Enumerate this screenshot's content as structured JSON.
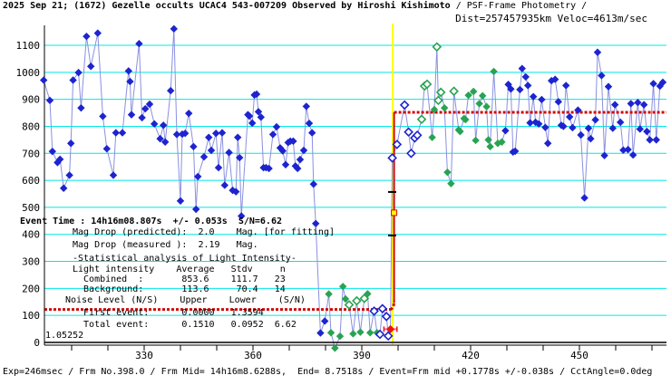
{
  "title": {
    "bold": "2025 Sep 21; (1672) Gezelle occults UCAC4 543-007209 Observed by Hiroshi Kishimoto ",
    "light": "/ PSF-Frame Photometry /",
    "sub": "Dist=257457935km Veloc=4613m/sec"
  },
  "footer": {
    "text": "Exp=246msec / Frm No.398.0 / Frm Mid= 14h16m8.6288s,  End= 8.7518s / Event=Frm mid +0.1778s +/-0.038s / CctAngle=0.0deg"
  },
  "event_info": {
    "lines": [
      "Event Time : 14h16m08.807s  +/- 0.053s  S/N=6.62",
      "Mag Drop (predicted):  2.0    Mag. [for fitting]",
      "Mag Drop (measured ):  2.19   Mag.",
      "-Statistical analysis of Light Intensity-",
      "Light intensity    Average   Stdv     n",
      "  Combined  :       853.6    111.7   23",
      "  Background:       113.6     70.4   14",
      "Noise Level (N/S)    Upper    Lower    (S/N)",
      "  First event:      0.0000   1.3594",
      "  Total event:      0.1510   0.0952  6.62",
      "1.05252"
    ]
  },
  "chart_data": {
    "type": "line",
    "title": "",
    "xlabel": "",
    "ylabel": "",
    "x_axis": {
      "labels": [
        330,
        360,
        390,
        420,
        450
      ],
      "tick_start": 310,
      "tick_end": 470,
      "tick_step": 10,
      "min": 302.5,
      "max": 474
    },
    "y_axis": {
      "labels": [
        0,
        100,
        200,
        300,
        400,
        500,
        600,
        700,
        800,
        900,
        1000,
        1100
      ],
      "step": 100,
      "grid_start": 100,
      "max": 1100
    },
    "grid": true,
    "legend": "none",
    "colors": {
      "grid": "#00e8e8",
      "line": "#8a90e0",
      "blue_point": "#1d24cf",
      "green_point": "#28a352",
      "fit": "#cf0a0a",
      "cursor": "#ffff00",
      "event": "#ee1111",
      "event_bar": "#ff5f9e",
      "axis": "#000000"
    },
    "marker_styles": {
      "b": {
        "fill": "#1d24cf"
      },
      "bo": {
        "fill": "#ffffff",
        "stroke": "#1d24cf"
      },
      "g": {
        "fill": "#28a352"
      },
      "go": {
        "fill": "#ffffff",
        "stroke": "#28a352"
      },
      "r": {
        "fill": "#ee1111"
      }
    },
    "cursor": {
      "frame": 398.5
    },
    "fit": {
      "low_level": 122,
      "high_level": 852,
      "step_frame": 398.9,
      "tick_marks": [
        {
          "frame": 398.25,
          "value": 557
        },
        {
          "frame": 398.25,
          "value": 396
        }
      ],
      "square": {
        "value": 480
      }
    },
    "event_marker": {
      "frame": 397.9,
      "value": 49,
      "errorbar_halfwidth_frames": 1.8
    },
    "points": [
      [
        302.3,
        971,
        "b"
      ],
      [
        304,
        896,
        "b"
      ],
      [
        304.7,
        707,
        "b"
      ],
      [
        306.1,
        666,
        "b"
      ],
      [
        306.8,
        678,
        "b"
      ],
      [
        307.8,
        571,
        "b"
      ],
      [
        309.4,
        619,
        "b"
      ],
      [
        309.8,
        737,
        "b"
      ],
      [
        310.4,
        971,
        "b"
      ],
      [
        311.9,
        999,
        "b"
      ],
      [
        312.6,
        868,
        "b"
      ],
      [
        314.1,
        1133,
        "b"
      ],
      [
        315.3,
        1022,
        "b"
      ],
      [
        317.2,
        1145,
        "b"
      ],
      [
        318.6,
        837,
        "b"
      ],
      [
        319.7,
        717,
        "b"
      ],
      [
        321.5,
        619,
        "b"
      ],
      [
        322.2,
        776,
        "b"
      ],
      [
        324,
        776,
        "b"
      ],
      [
        325.7,
        1005,
        "b"
      ],
      [
        326.1,
        966,
        "b"
      ],
      [
        326.5,
        843,
        "b"
      ],
      [
        328.6,
        1106,
        "b"
      ],
      [
        329.4,
        832,
        "b"
      ],
      [
        330.3,
        865,
        "b"
      ],
      [
        331.5,
        882,
        "b"
      ],
      [
        332.8,
        809,
        "b"
      ],
      [
        334.4,
        754,
        "b"
      ],
      [
        335.3,
        804,
        "b"
      ],
      [
        335.8,
        742,
        "b"
      ],
      [
        337.3,
        932,
        "b"
      ],
      [
        338.2,
        1161,
        "b"
      ],
      [
        339,
        770,
        "b"
      ],
      [
        340,
        524,
        "b"
      ],
      [
        340.5,
        771,
        "b"
      ],
      [
        341.3,
        774,
        "b"
      ],
      [
        342.3,
        848,
        "b"
      ],
      [
        343.6,
        725,
        "b"
      ],
      [
        344.3,
        493,
        "b"
      ],
      [
        344.8,
        614,
        "b"
      ],
      [
        346.5,
        687,
        "b"
      ],
      [
        347.8,
        759,
        "b"
      ],
      [
        348.5,
        711,
        "b"
      ],
      [
        349.8,
        774,
        "b"
      ],
      [
        350.5,
        647,
        "b"
      ],
      [
        351.5,
        776,
        "b"
      ],
      [
        352.2,
        582,
        "b"
      ],
      [
        353.4,
        703,
        "b"
      ],
      [
        354.4,
        563,
        "b"
      ],
      [
        355.3,
        558,
        "b"
      ],
      [
        355.8,
        759,
        "b"
      ],
      [
        356.3,
        684,
        "b"
      ],
      [
        356.8,
        468,
        "b"
      ],
      [
        358.6,
        843,
        "b"
      ],
      [
        359,
        838,
        "b"
      ],
      [
        359.8,
        812,
        "b"
      ],
      [
        360.4,
        916,
        "b"
      ],
      [
        361,
        919,
        "b"
      ],
      [
        361.5,
        854,
        "b"
      ],
      [
        362.2,
        834,
        "b"
      ],
      [
        362.9,
        647,
        "b"
      ],
      [
        363.6,
        647,
        "b"
      ],
      [
        364.4,
        644,
        "b"
      ],
      [
        365.5,
        770,
        "b"
      ],
      [
        366.5,
        798,
        "b"
      ],
      [
        367.5,
        720,
        "b"
      ],
      [
        368.2,
        709,
        "b"
      ],
      [
        369,
        658,
        "b"
      ],
      [
        369.7,
        740,
        "b"
      ],
      [
        370.3,
        745,
        "b"
      ],
      [
        371.1,
        745,
        "b"
      ],
      [
        371.7,
        653,
        "b"
      ],
      [
        372.3,
        644,
        "b"
      ],
      [
        373,
        677,
        "b"
      ],
      [
        374,
        711,
        "b"
      ],
      [
        374.7,
        874,
        "b"
      ],
      [
        375.5,
        811,
        "b"
      ],
      [
        376.3,
        776,
        "b"
      ],
      [
        376.7,
        586,
        "b"
      ],
      [
        377.3,
        440,
        "b"
      ],
      [
        378.6,
        35,
        "b"
      ],
      [
        379.8,
        79,
        "b"
      ],
      [
        380.9,
        179,
        "g"
      ],
      [
        381.5,
        36,
        "g"
      ],
      [
        382.6,
        -21,
        "g"
      ],
      [
        384,
        23,
        "g"
      ],
      [
        384.8,
        207,
        "g"
      ],
      [
        385.5,
        161,
        "g"
      ],
      [
        386.5,
        139,
        "go"
      ],
      [
        387.6,
        32,
        "g"
      ],
      [
        388.6,
        154,
        "go"
      ],
      [
        389.6,
        38,
        "g"
      ],
      [
        390.7,
        163,
        "go"
      ],
      [
        391.6,
        180,
        "g"
      ],
      [
        392.3,
        36,
        "g"
      ],
      [
        393.4,
        116,
        "bo"
      ],
      [
        394.2,
        36,
        "g"
      ],
      [
        395,
        30,
        "bo"
      ],
      [
        395.7,
        125,
        "bo"
      ],
      [
        396.8,
        96,
        "bo"
      ],
      [
        397.3,
        24,
        "bo"
      ],
      [
        397.9,
        49,
        "r"
      ],
      [
        398.4,
        683,
        "bo"
      ],
      [
        399.7,
        733,
        "bo"
      ],
      [
        401.8,
        879,
        "bo"
      ],
      [
        402.9,
        779,
        "bo"
      ],
      [
        403.6,
        700,
        "bo"
      ],
      [
        404.6,
        757,
        "bo"
      ],
      [
        405.3,
        767,
        "bo"
      ],
      [
        406.5,
        826,
        "go"
      ],
      [
        407.3,
        949,
        "go"
      ],
      [
        408,
        956,
        "go"
      ],
      [
        409.4,
        759,
        "g"
      ],
      [
        410,
        862,
        "g"
      ],
      [
        410.7,
        1094,
        "go"
      ],
      [
        411.1,
        896,
        "go"
      ],
      [
        411.8,
        926,
        "go"
      ],
      [
        412.8,
        868,
        "g"
      ],
      [
        413.6,
        630,
        "g"
      ],
      [
        414.6,
        588,
        "g"
      ],
      [
        415.4,
        930,
        "go"
      ],
      [
        416.7,
        787,
        "g"
      ],
      [
        417.1,
        781,
        "g"
      ],
      [
        418.2,
        829,
        "g"
      ],
      [
        418.6,
        825,
        "g"
      ],
      [
        419.4,
        915,
        "g"
      ],
      [
        420.8,
        929,
        "g"
      ],
      [
        421.4,
        748,
        "g"
      ],
      [
        422.4,
        884,
        "g"
      ],
      [
        423.3,
        913,
        "g"
      ],
      [
        424.4,
        873,
        "g"
      ],
      [
        424.9,
        750,
        "g"
      ],
      [
        425.4,
        725,
        "g"
      ],
      [
        426.4,
        1003,
        "g"
      ],
      [
        427.5,
        737,
        "g"
      ],
      [
        428.6,
        742,
        "g"
      ],
      [
        429.6,
        784,
        "b"
      ],
      [
        430.4,
        955,
        "b"
      ],
      [
        431.1,
        938,
        "b"
      ],
      [
        431.7,
        705,
        "b"
      ],
      [
        432.3,
        708,
        "b"
      ],
      [
        433.6,
        936,
        "b"
      ],
      [
        434.2,
        1014,
        "b"
      ],
      [
        435.2,
        983,
        "b"
      ],
      [
        435.8,
        951,
        "b"
      ],
      [
        436.4,
        813,
        "b"
      ],
      [
        437.3,
        910,
        "b"
      ],
      [
        437.9,
        815,
        "b"
      ],
      [
        438.8,
        809,
        "b"
      ],
      [
        439.6,
        899,
        "b"
      ],
      [
        440.6,
        796,
        "b"
      ],
      [
        441.3,
        737,
        "b"
      ],
      [
        442.3,
        969,
        "b"
      ],
      [
        443.3,
        974,
        "b"
      ],
      [
        444.2,
        891,
        "b"
      ],
      [
        445,
        804,
        "b"
      ],
      [
        445.6,
        800,
        "b"
      ],
      [
        446.3,
        951,
        "b"
      ],
      [
        447.3,
        835,
        "b"
      ],
      [
        448.1,
        795,
        "b"
      ],
      [
        449.6,
        860,
        "b"
      ],
      [
        450.4,
        768,
        "b"
      ],
      [
        451.4,
        535,
        "b"
      ],
      [
        452.5,
        793,
        "b"
      ],
      [
        453.1,
        754,
        "b"
      ],
      [
        454.4,
        824,
        "b"
      ],
      [
        455,
        1074,
        "b"
      ],
      [
        456.1,
        988,
        "b"
      ],
      [
        456.9,
        692,
        "b"
      ],
      [
        458,
        947,
        "b"
      ],
      [
        459.2,
        793,
        "b"
      ],
      [
        459.8,
        880,
        "b"
      ],
      [
        461.3,
        815,
        "b"
      ],
      [
        462.1,
        712,
        "b"
      ],
      [
        463.4,
        714,
        "b"
      ],
      [
        464.2,
        884,
        "b"
      ],
      [
        464.8,
        694,
        "b"
      ],
      [
        466.1,
        888,
        "b"
      ],
      [
        466.7,
        790,
        "b"
      ],
      [
        467.8,
        880,
        "b"
      ],
      [
        468.6,
        781,
        "b"
      ],
      [
        469.4,
        750,
        "b"
      ],
      [
        470.4,
        958,
        "b"
      ],
      [
        471.2,
        750,
        "b"
      ],
      [
        472.2,
        949,
        "b"
      ],
      [
        473,
        963,
        "b"
      ]
    ]
  }
}
